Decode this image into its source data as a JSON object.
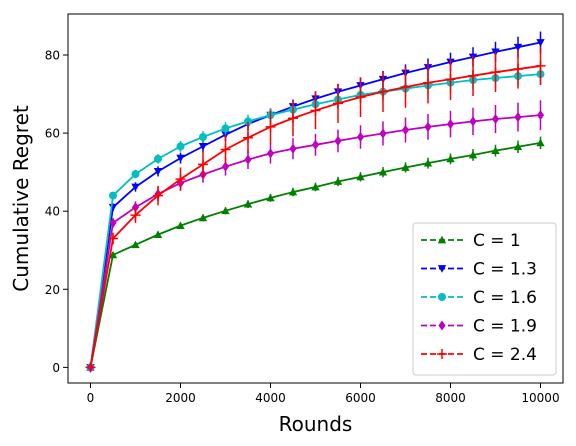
{
  "chart_data": {
    "type": "line",
    "xlabel": "Rounds",
    "ylabel": "Cumulative Regret",
    "xlim": [
      -500,
      10500
    ],
    "ylim": [
      -4,
      90.5
    ],
    "xticks": [
      0,
      2000,
      4000,
      6000,
      8000,
      10000
    ],
    "yticks": [
      0,
      20,
      40,
      60,
      80
    ],
    "grid": false,
    "legend_position": "lower-right",
    "x": [
      0,
      500,
      1000,
      1500,
      2000,
      2500,
      3000,
      3500,
      4000,
      4500,
      5000,
      5500,
      6000,
      6500,
      7000,
      7500,
      8000,
      8500,
      9000,
      9500,
      10000
    ],
    "series": [
      {
        "name": "C = 1",
        "color": "#008000",
        "marker": "triangle-up",
        "values": [
          0,
          28.8,
          31.4,
          34.0,
          36.3,
          38.3,
          40.1,
          41.8,
          43.4,
          44.9,
          46.2,
          47.6,
          48.8,
          50.0,
          51.2,
          52.3,
          53.4,
          54.4,
          55.5,
          56.5,
          57.5
        ],
        "errors": [
          0,
          0.6,
          0.7,
          0.8,
          0.8,
          0.9,
          0.9,
          1.0,
          1.0,
          1.1,
          1.1,
          1.2,
          1.2,
          1.3,
          1.3,
          1.4,
          1.4,
          1.5,
          1.5,
          1.6,
          1.6
        ]
      },
      {
        "name": "C = 1.3",
        "color": "#0000ff",
        "marker": "triangle-down",
        "values": [
          0,
          41.0,
          46.2,
          50.2,
          53.6,
          56.6,
          59.6,
          62.3,
          64.6,
          66.8,
          68.8,
          70.6,
          72.2,
          73.8,
          75.4,
          76.8,
          78.2,
          79.5,
          80.8,
          82.0,
          83.2
        ],
        "errors": [
          0,
          1.0,
          1.2,
          1.3,
          1.4,
          1.5,
          1.6,
          1.6,
          1.7,
          1.8,
          1.9,
          2.0,
          2.0,
          2.1,
          2.2,
          2.3,
          2.4,
          2.5,
          2.6,
          2.7,
          2.8
        ]
      },
      {
        "name": "C = 1.6",
        "color": "#00bfbf",
        "marker": "circle",
        "values": [
          0,
          44.0,
          49.5,
          53.4,
          56.6,
          59.0,
          61.2,
          63.0,
          64.6,
          66.0,
          67.4,
          68.6,
          69.8,
          70.6,
          71.4,
          72.2,
          72.9,
          73.6,
          74.1,
          74.6,
          75.1
        ],
        "errors": [
          0,
          0.9,
          1.1,
          1.2,
          1.4,
          1.5,
          1.6,
          1.7,
          1.8,
          1.9,
          2.0,
          2.1,
          2.1,
          2.2,
          2.3,
          2.3,
          2.4,
          2.4,
          2.5,
          2.5,
          2.6
        ]
      },
      {
        "name": "C = 1.9",
        "color": "#bf00bf",
        "marker": "diamond",
        "values": [
          0,
          37.0,
          41.0,
          44.4,
          47.2,
          49.4,
          51.4,
          53.2,
          54.8,
          56.0,
          57.0,
          58.0,
          59.0,
          59.9,
          60.8,
          61.6,
          62.3,
          63.0,
          63.6,
          64.1,
          64.6
        ],
        "errors": [
          0,
          1.2,
          1.5,
          1.7,
          1.9,
          2.1,
          2.3,
          2.4,
          2.6,
          2.7,
          2.8,
          2.9,
          3.0,
          3.1,
          3.2,
          3.3,
          3.4,
          3.5,
          3.6,
          3.7,
          3.8
        ]
      },
      {
        "name": "C = 2.4",
        "color": "#ff0000",
        "marker": "plus",
        "values": [
          0,
          33.0,
          39.0,
          44.0,
          48.2,
          52.0,
          55.8,
          58.8,
          61.6,
          63.8,
          65.8,
          67.6,
          69.2,
          70.6,
          71.8,
          72.9,
          73.8,
          74.7,
          75.6,
          76.4,
          77.2
        ],
        "errors": [
          0,
          1.5,
          2.0,
          2.5,
          3.0,
          3.4,
          3.8,
          4.1,
          4.4,
          4.6,
          4.8,
          5.0,
          5.1,
          5.2,
          5.3,
          5.3,
          5.3,
          5.2,
          5.1,
          5.0,
          4.9
        ]
      }
    ]
  }
}
